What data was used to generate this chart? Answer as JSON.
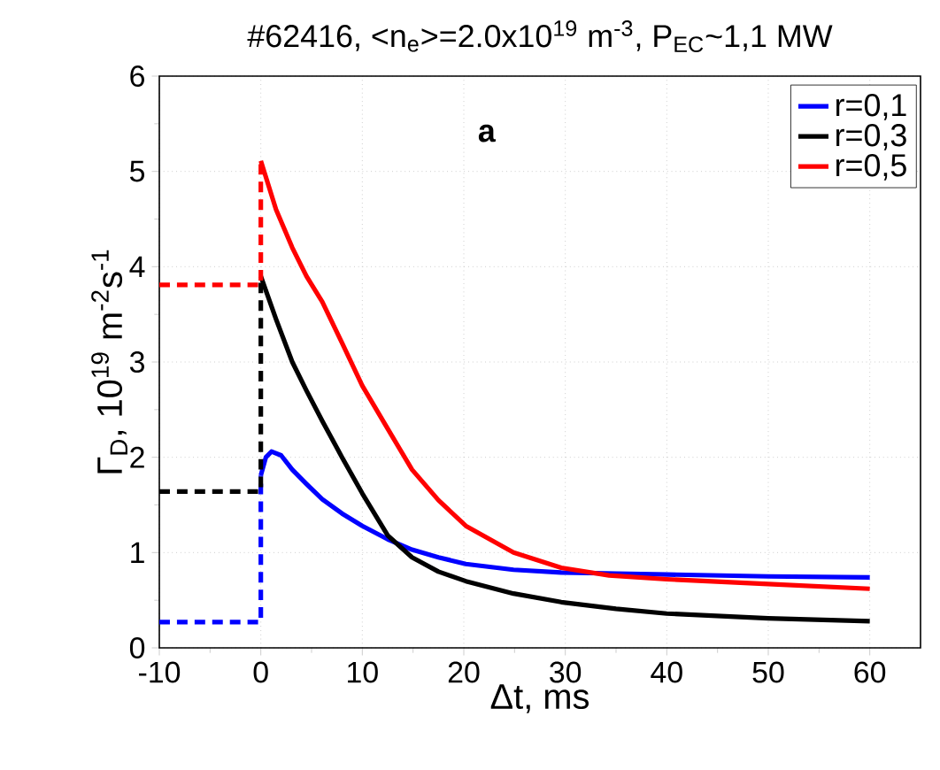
{
  "chart_data": {
    "type": "line",
    "title": "#62416, <n$_{e}$>=2.0x10$^{19}$ m$^{-3}$, P$_{EC}$~1,1 MW",
    "xlabel": "Δt, ms",
    "ylabel": "Γ$_{D}$, 10$^{19}$ m$^{-2}$s$^{-1}$",
    "annotations": [
      "a"
    ],
    "xlim": [
      -10,
      65
    ],
    "ylim": [
      0,
      6
    ],
    "xticks": [
      -10,
      0,
      10,
      20,
      30,
      40,
      50,
      60
    ],
    "yticks": [
      0,
      1,
      2,
      3,
      4,
      5,
      6
    ],
    "grid": true,
    "legend": "top right",
    "marker": "none",
    "series": [
      {
        "name": "r=0,1",
        "color": "#0000ff",
        "line_style": "solid",
        "x": [
          0,
          0.5,
          1.05,
          2,
          3.1,
          4.5,
          6.06,
          8,
          10,
          12.5,
          14.9,
          17.5,
          20.2,
          24.9,
          29.6,
          35,
          40,
          50,
          60
        ],
        "values": [
          1.81,
          2.0,
          2.06,
          2.02,
          1.87,
          1.72,
          1.56,
          1.41,
          1.28,
          1.14,
          1.03,
          0.95,
          0.88,
          0.82,
          0.79,
          0.78,
          0.77,
          0.75,
          0.74
        ]
      },
      {
        "name": "r=0,3",
        "color": "#000000",
        "line_style": "solid",
        "x": [
          0,
          1.5,
          3.1,
          4.5,
          6.06,
          8,
          10,
          12.5,
          14.9,
          17.5,
          20.2,
          24.9,
          29.6,
          35,
          40,
          50,
          60
        ],
        "values": [
          3.9,
          3.45,
          3.0,
          2.7,
          2.38,
          2.0,
          1.62,
          1.18,
          0.95,
          0.8,
          0.7,
          0.57,
          0.48,
          0.41,
          0.36,
          0.31,
          0.28
        ]
      },
      {
        "name": "r=0,5",
        "color": "#ff0000",
        "line_style": "solid",
        "x": [
          0,
          1.5,
          3.1,
          4.5,
          6.06,
          8,
          10,
          12.5,
          14.9,
          17.5,
          20.2,
          24.9,
          29.6,
          34.3,
          40,
          50,
          60
        ],
        "values": [
          5.11,
          4.6,
          4.2,
          3.9,
          3.63,
          3.2,
          2.75,
          2.3,
          1.87,
          1.55,
          1.28,
          1.0,
          0.84,
          0.76,
          0.72,
          0.67,
          0.62
        ]
      },
      {
        "color": "#0000ff",
        "line_style": "dashed",
        "x": [
          -10,
          0,
          0
        ],
        "values": [
          0.27,
          0.27,
          1.81
        ]
      },
      {
        "color": "#000000",
        "line_style": "dashed",
        "x": [
          -10,
          0,
          0
        ],
        "values": [
          1.64,
          1.64,
          3.9
        ]
      },
      {
        "color": "#ff0000",
        "line_style": "dashed",
        "x": [
          -10,
          0,
          0
        ],
        "values": [
          3.81,
          3.81,
          5.11
        ]
      }
    ]
  }
}
